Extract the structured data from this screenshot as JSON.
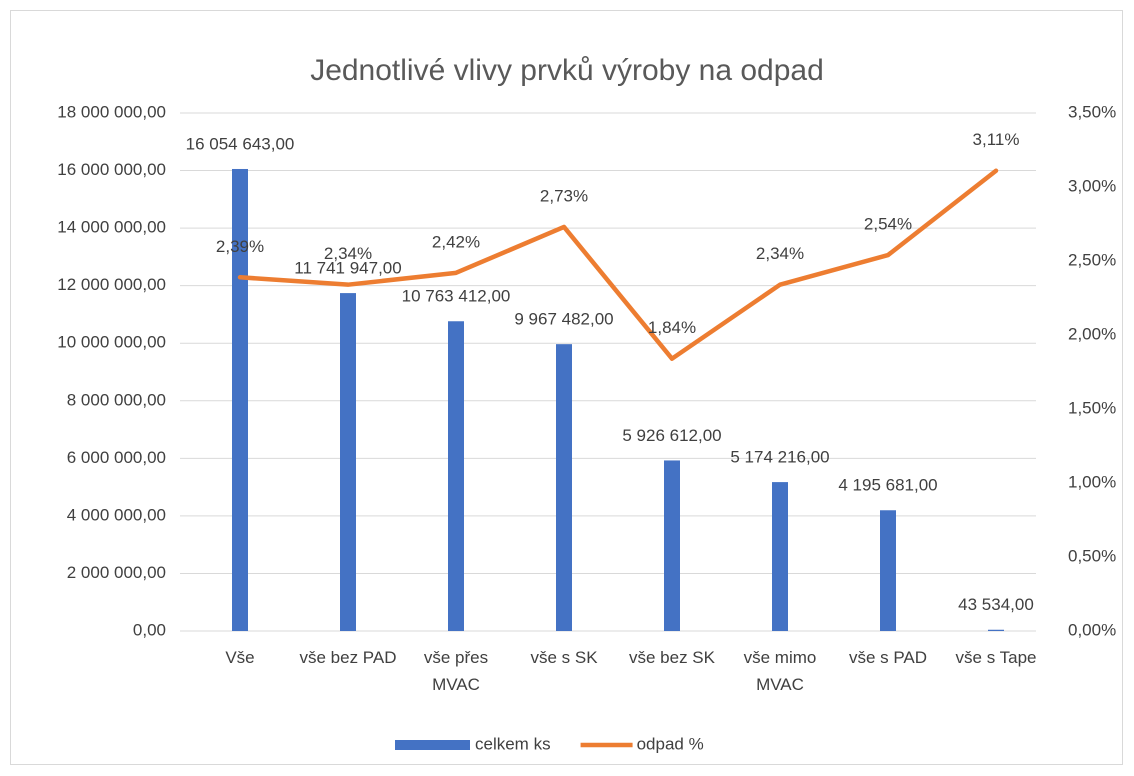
{
  "chart_data": {
    "type": "bar",
    "title": "Jednotlivé vlivy prvků výroby na odpad",
    "categories": [
      "Vše",
      "vše bez PAD",
      "vše přes MVAC",
      "vše s SK",
      "vše bez SK",
      "vše mimo MVAC",
      "vše s PAD",
      "vše s Tape"
    ],
    "series": [
      {
        "name": "celkem ks",
        "type": "bar",
        "color": "#4472c4",
        "values": [
          16054643,
          11741947,
          10763412,
          9967482,
          5926612,
          5174216,
          4195681,
          43534
        ],
        "value_labels": [
          "16 054 643,00",
          "11 741 947,00",
          "10 763 412,00",
          "9 967 482,00",
          "5 926 612,00",
          "5 174 216,00",
          "4 195 681,00",
          "43 534,00"
        ]
      },
      {
        "name": "odpad %",
        "type": "line",
        "axis": "y2",
        "color": "#ed7d31",
        "values": [
          2.39,
          2.34,
          2.42,
          2.73,
          1.84,
          2.34,
          2.54,
          3.11
        ],
        "value_labels": [
          "2,39%",
          "2,34%",
          "2,42%",
          "2,73%",
          "1,84%",
          "2,34%",
          "2,54%",
          "3,11%"
        ]
      }
    ],
    "ylim": [
      0,
      18000000
    ],
    "yticks": [
      {
        "value": 0,
        "label": "0,00"
      },
      {
        "value": 2000000,
        "label": "2 000 000,00"
      },
      {
        "value": 4000000,
        "label": "4 000 000,00"
      },
      {
        "value": 6000000,
        "label": "6 000 000,00"
      },
      {
        "value": 8000000,
        "label": "8 000 000,00"
      },
      {
        "value": 10000000,
        "label": "10 000 000,00"
      },
      {
        "value": 12000000,
        "label": "12 000 000,00"
      },
      {
        "value": 14000000,
        "label": "14 000 000,00"
      },
      {
        "value": 16000000,
        "label": "16 000 000,00"
      },
      {
        "value": 18000000,
        "label": "18 000 000,00"
      }
    ],
    "y2lim": [
      0,
      3.5
    ],
    "y2ticks": [
      {
        "value": 0,
        "label": "0,00%"
      },
      {
        "value": 0.5,
        "label": "0,50%"
      },
      {
        "value": 1,
        "label": "1,00%"
      },
      {
        "value": 1.5,
        "label": "1,50%"
      },
      {
        "value": 2,
        "label": "2,00%"
      },
      {
        "value": 2.5,
        "label": "2,50%"
      },
      {
        "value": 3,
        "label": "3,00%"
      },
      {
        "value": 3.5,
        "label": "3,50%"
      }
    ],
    "grid": true,
    "legend": "bottom"
  }
}
